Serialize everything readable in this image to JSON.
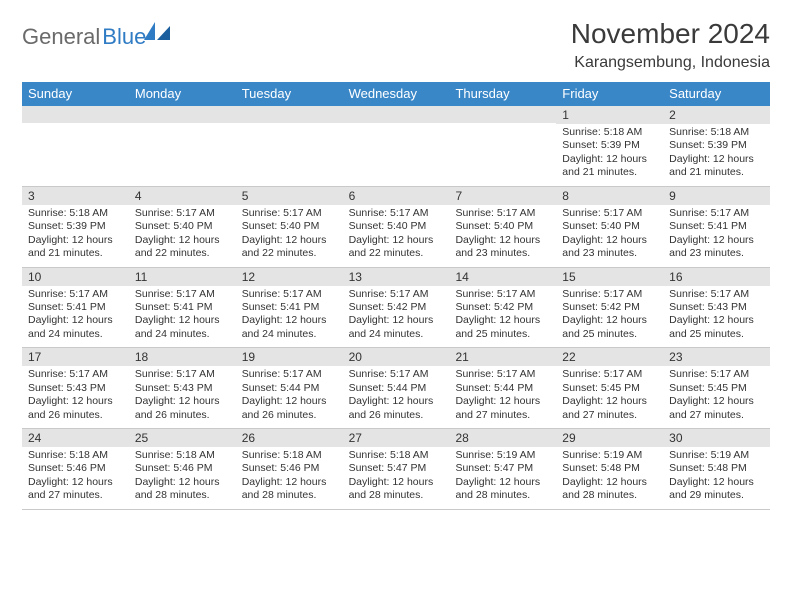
{
  "logo": {
    "text_gray": "General",
    "text_blue": "Blue"
  },
  "title": "November 2024",
  "subtitle": "Karangsembung, Indonesia",
  "colors": {
    "header_bg": "#3a87c8",
    "header_text": "#ffffff",
    "daynum_bg": "#e4e4e4",
    "text": "#333333",
    "divider": "#c9c9c9",
    "logo_gray": "#6a6a6a",
    "logo_blue": "#2f7bc4"
  },
  "day_names": [
    "Sunday",
    "Monday",
    "Tuesday",
    "Wednesday",
    "Thursday",
    "Friday",
    "Saturday"
  ],
  "weeks": [
    [
      {
        "num": "",
        "sunrise": "",
        "sunset": "",
        "daylight": ""
      },
      {
        "num": "",
        "sunrise": "",
        "sunset": "",
        "daylight": ""
      },
      {
        "num": "",
        "sunrise": "",
        "sunset": "",
        "daylight": ""
      },
      {
        "num": "",
        "sunrise": "",
        "sunset": "",
        "daylight": ""
      },
      {
        "num": "",
        "sunrise": "",
        "sunset": "",
        "daylight": ""
      },
      {
        "num": "1",
        "sunrise": "Sunrise: 5:18 AM",
        "sunset": "Sunset: 5:39 PM",
        "daylight": "Daylight: 12 hours and 21 minutes."
      },
      {
        "num": "2",
        "sunrise": "Sunrise: 5:18 AM",
        "sunset": "Sunset: 5:39 PM",
        "daylight": "Daylight: 12 hours and 21 minutes."
      }
    ],
    [
      {
        "num": "3",
        "sunrise": "Sunrise: 5:18 AM",
        "sunset": "Sunset: 5:39 PM",
        "daylight": "Daylight: 12 hours and 21 minutes."
      },
      {
        "num": "4",
        "sunrise": "Sunrise: 5:17 AM",
        "sunset": "Sunset: 5:40 PM",
        "daylight": "Daylight: 12 hours and 22 minutes."
      },
      {
        "num": "5",
        "sunrise": "Sunrise: 5:17 AM",
        "sunset": "Sunset: 5:40 PM",
        "daylight": "Daylight: 12 hours and 22 minutes."
      },
      {
        "num": "6",
        "sunrise": "Sunrise: 5:17 AM",
        "sunset": "Sunset: 5:40 PM",
        "daylight": "Daylight: 12 hours and 22 minutes."
      },
      {
        "num": "7",
        "sunrise": "Sunrise: 5:17 AM",
        "sunset": "Sunset: 5:40 PM",
        "daylight": "Daylight: 12 hours and 23 minutes."
      },
      {
        "num": "8",
        "sunrise": "Sunrise: 5:17 AM",
        "sunset": "Sunset: 5:40 PM",
        "daylight": "Daylight: 12 hours and 23 minutes."
      },
      {
        "num": "9",
        "sunrise": "Sunrise: 5:17 AM",
        "sunset": "Sunset: 5:41 PM",
        "daylight": "Daylight: 12 hours and 23 minutes."
      }
    ],
    [
      {
        "num": "10",
        "sunrise": "Sunrise: 5:17 AM",
        "sunset": "Sunset: 5:41 PM",
        "daylight": "Daylight: 12 hours and 24 minutes."
      },
      {
        "num": "11",
        "sunrise": "Sunrise: 5:17 AM",
        "sunset": "Sunset: 5:41 PM",
        "daylight": "Daylight: 12 hours and 24 minutes."
      },
      {
        "num": "12",
        "sunrise": "Sunrise: 5:17 AM",
        "sunset": "Sunset: 5:41 PM",
        "daylight": "Daylight: 12 hours and 24 minutes."
      },
      {
        "num": "13",
        "sunrise": "Sunrise: 5:17 AM",
        "sunset": "Sunset: 5:42 PM",
        "daylight": "Daylight: 12 hours and 24 minutes."
      },
      {
        "num": "14",
        "sunrise": "Sunrise: 5:17 AM",
        "sunset": "Sunset: 5:42 PM",
        "daylight": "Daylight: 12 hours and 25 minutes."
      },
      {
        "num": "15",
        "sunrise": "Sunrise: 5:17 AM",
        "sunset": "Sunset: 5:42 PM",
        "daylight": "Daylight: 12 hours and 25 minutes."
      },
      {
        "num": "16",
        "sunrise": "Sunrise: 5:17 AM",
        "sunset": "Sunset: 5:43 PM",
        "daylight": "Daylight: 12 hours and 25 minutes."
      }
    ],
    [
      {
        "num": "17",
        "sunrise": "Sunrise: 5:17 AM",
        "sunset": "Sunset: 5:43 PM",
        "daylight": "Daylight: 12 hours and 26 minutes."
      },
      {
        "num": "18",
        "sunrise": "Sunrise: 5:17 AM",
        "sunset": "Sunset: 5:43 PM",
        "daylight": "Daylight: 12 hours and 26 minutes."
      },
      {
        "num": "19",
        "sunrise": "Sunrise: 5:17 AM",
        "sunset": "Sunset: 5:44 PM",
        "daylight": "Daylight: 12 hours and 26 minutes."
      },
      {
        "num": "20",
        "sunrise": "Sunrise: 5:17 AM",
        "sunset": "Sunset: 5:44 PM",
        "daylight": "Daylight: 12 hours and 26 minutes."
      },
      {
        "num": "21",
        "sunrise": "Sunrise: 5:17 AM",
        "sunset": "Sunset: 5:44 PM",
        "daylight": "Daylight: 12 hours and 27 minutes."
      },
      {
        "num": "22",
        "sunrise": "Sunrise: 5:17 AM",
        "sunset": "Sunset: 5:45 PM",
        "daylight": "Daylight: 12 hours and 27 minutes."
      },
      {
        "num": "23",
        "sunrise": "Sunrise: 5:17 AM",
        "sunset": "Sunset: 5:45 PM",
        "daylight": "Daylight: 12 hours and 27 minutes."
      }
    ],
    [
      {
        "num": "24",
        "sunrise": "Sunrise: 5:18 AM",
        "sunset": "Sunset: 5:46 PM",
        "daylight": "Daylight: 12 hours and 27 minutes."
      },
      {
        "num": "25",
        "sunrise": "Sunrise: 5:18 AM",
        "sunset": "Sunset: 5:46 PM",
        "daylight": "Daylight: 12 hours and 28 minutes."
      },
      {
        "num": "26",
        "sunrise": "Sunrise: 5:18 AM",
        "sunset": "Sunset: 5:46 PM",
        "daylight": "Daylight: 12 hours and 28 minutes."
      },
      {
        "num": "27",
        "sunrise": "Sunrise: 5:18 AM",
        "sunset": "Sunset: 5:47 PM",
        "daylight": "Daylight: 12 hours and 28 minutes."
      },
      {
        "num": "28",
        "sunrise": "Sunrise: 5:19 AM",
        "sunset": "Sunset: 5:47 PM",
        "daylight": "Daylight: 12 hours and 28 minutes."
      },
      {
        "num": "29",
        "sunrise": "Sunrise: 5:19 AM",
        "sunset": "Sunset: 5:48 PM",
        "daylight": "Daylight: 12 hours and 28 minutes."
      },
      {
        "num": "30",
        "sunrise": "Sunrise: 5:19 AM",
        "sunset": "Sunset: 5:48 PM",
        "daylight": "Daylight: 12 hours and 29 minutes."
      }
    ]
  ]
}
